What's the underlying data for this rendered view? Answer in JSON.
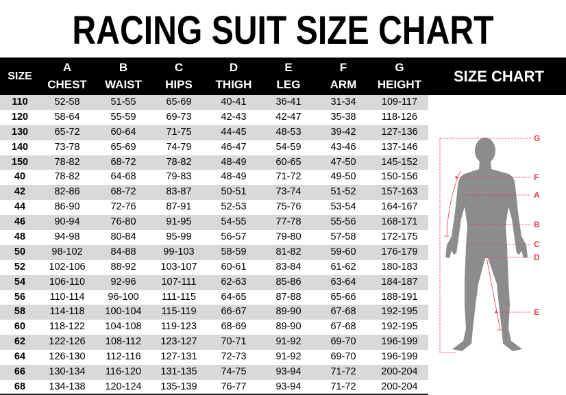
{
  "title": "RACING SUIT SIZE CHART",
  "header": {
    "size_label": "SIZE",
    "chart_label": "SIZE CHART",
    "columns": [
      {
        "letter": "A",
        "name": "CHEST"
      },
      {
        "letter": "B",
        "name": "WAIST"
      },
      {
        "letter": "C",
        "name": "HIPS"
      },
      {
        "letter": "D",
        "name": "THIGH"
      },
      {
        "letter": "E",
        "name": "LEG"
      },
      {
        "letter": "F",
        "name": "ARM"
      },
      {
        "letter": "G",
        "name": "HEIGHT"
      }
    ]
  },
  "rows": [
    [
      "110",
      "52-58",
      "51-55",
      "65-69",
      "40-41",
      "36-41",
      "31-34",
      "109-117"
    ],
    [
      "120",
      "58-64",
      "55-59",
      "69-73",
      "42-43",
      "42-47",
      "35-38",
      "118-126"
    ],
    [
      "130",
      "65-72",
      "60-64",
      "71-75",
      "44-45",
      "48-53",
      "39-42",
      "127-136"
    ],
    [
      "140",
      "73-78",
      "65-69",
      "74-79",
      "46-47",
      "54-59",
      "43-46",
      "137-146"
    ],
    [
      "150",
      "78-82",
      "68-72",
      "78-82",
      "48-49",
      "60-65",
      "47-50",
      "145-152"
    ],
    [
      "40",
      "78-82",
      "64-68",
      "79-83",
      "48-49",
      "71-72",
      "49-50",
      "150-156"
    ],
    [
      "42",
      "82-86",
      "68-72",
      "83-87",
      "50-51",
      "73-74",
      "51-52",
      "157-163"
    ],
    [
      "44",
      "86-90",
      "72-76",
      "87-91",
      "52-53",
      "75-76",
      "53-54",
      "164-167"
    ],
    [
      "46",
      "90-94",
      "76-80",
      "91-95",
      "54-55",
      "77-78",
      "55-56",
      "168-171"
    ],
    [
      "48",
      "94-98",
      "80-84",
      "95-99",
      "56-57",
      "79-80",
      "57-58",
      "172-175"
    ],
    [
      "50",
      "98-102",
      "84-88",
      "99-103",
      "58-59",
      "81-82",
      "59-60",
      "176-179"
    ],
    [
      "52",
      "102-106",
      "88-92",
      "103-107",
      "60-61",
      "83-84",
      "61-62",
      "180-183"
    ],
    [
      "54",
      "106-110",
      "92-96",
      "107-111",
      "62-63",
      "85-86",
      "63-64",
      "184-187"
    ],
    [
      "56",
      "110-114",
      "96-100",
      "111-115",
      "64-65",
      "87-88",
      "65-66",
      "188-191"
    ],
    [
      "58",
      "114-118",
      "100-104",
      "115-119",
      "66-67",
      "89-90",
      "67-68",
      "192-195"
    ],
    [
      "60",
      "118-122",
      "104-108",
      "119-123",
      "68-69",
      "89-90",
      "67-68",
      "192-195"
    ],
    [
      "62",
      "122-126",
      "108-112",
      "123-127",
      "70-71",
      "91-92",
      "69-70",
      "196-199"
    ],
    [
      "64",
      "126-130",
      "112-116",
      "127-131",
      "72-73",
      "91-92",
      "69-70",
      "196-199"
    ],
    [
      "66",
      "130-134",
      "116-120",
      "131-135",
      "74-75",
      "93-94",
      "71-72",
      "200-204"
    ],
    [
      "68",
      "134-138",
      "120-124",
      "135-139",
      "76-77",
      "93-94",
      "71-72",
      "200-204"
    ]
  ],
  "figure": {
    "markers": [
      "G",
      "F",
      "A",
      "B",
      "C",
      "D",
      "E"
    ],
    "body_color": "#8c8c8c",
    "line_color": "#e8384f"
  }
}
